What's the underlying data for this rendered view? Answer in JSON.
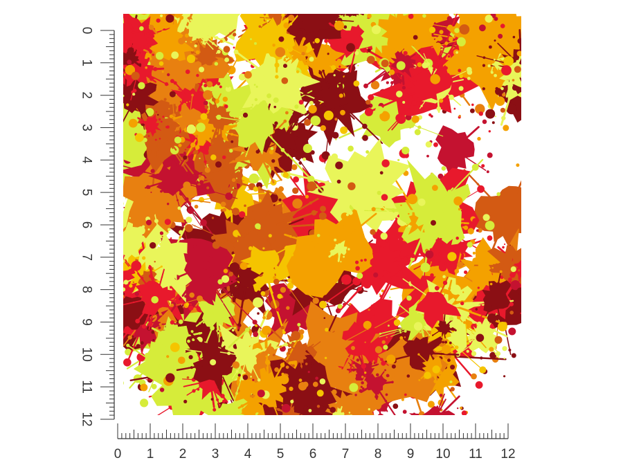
{
  "product_image": {
    "description_visible_text": "",
    "palette": [
      "#ffffff",
      "#f5c400",
      "#f4a100",
      "#e88010",
      "#d35a13",
      "#e8192c",
      "#c41230",
      "#8b0f14",
      "#e9f55a",
      "#d6ec3a"
    ],
    "pattern": "paint-splatter"
  },
  "vertical_ruler": {
    "labels": [
      "0",
      "1",
      "2",
      "3",
      "4",
      "5",
      "6",
      "7",
      "8",
      "9",
      "10",
      "11",
      "12"
    ],
    "color": "#333333",
    "subdivisions_per_unit": 8
  },
  "horizontal_ruler": {
    "labels": [
      "0",
      "1",
      "2",
      "3",
      "4",
      "5",
      "6",
      "7",
      "8",
      "9",
      "10",
      "11",
      "12"
    ],
    "color": "#333333",
    "subdivisions_per_unit": 8
  }
}
